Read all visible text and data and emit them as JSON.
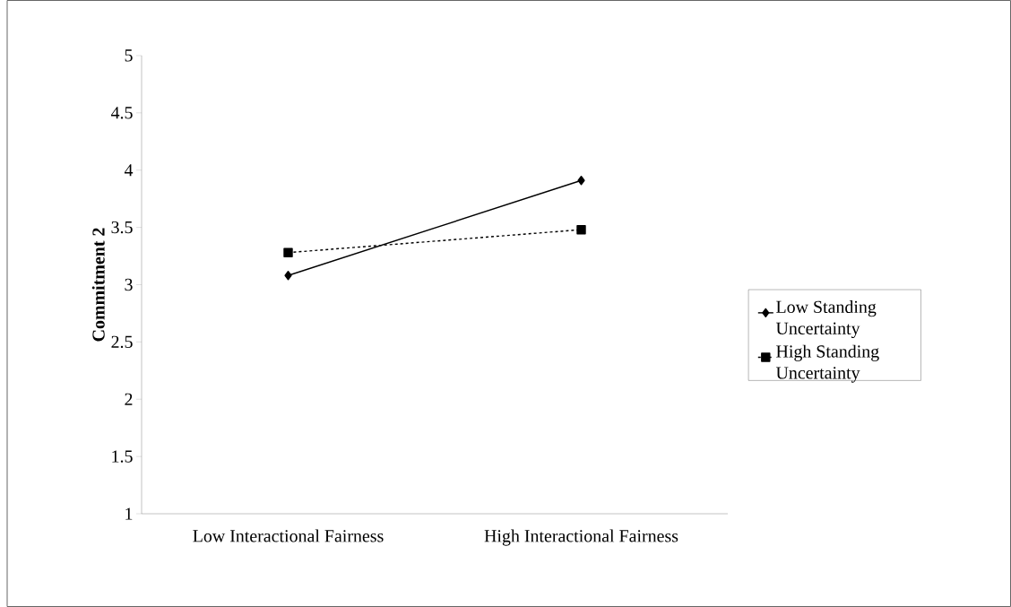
{
  "chart_data": {
    "type": "line",
    "ylabel": "Commitment 2",
    "categories": [
      "Low Interactional Fairness",
      "High Interactional Fairness"
    ],
    "series": [
      {
        "name": "Low Standing Uncertainty",
        "color": "#000000",
        "values": [
          3.08,
          3.91
        ],
        "marker": "diamond",
        "line_style": "solid"
      },
      {
        "name": "High Standing Uncertainty",
        "color": "#000000",
        "values": [
          3.28,
          3.48
        ],
        "marker": "square",
        "line_style": "dashed"
      }
    ],
    "ylim": [
      1,
      5
    ],
    "yticks": [
      1,
      1.5,
      2,
      2.5,
      3,
      3.5,
      4,
      4.5,
      5
    ],
    "legend": "right"
  }
}
